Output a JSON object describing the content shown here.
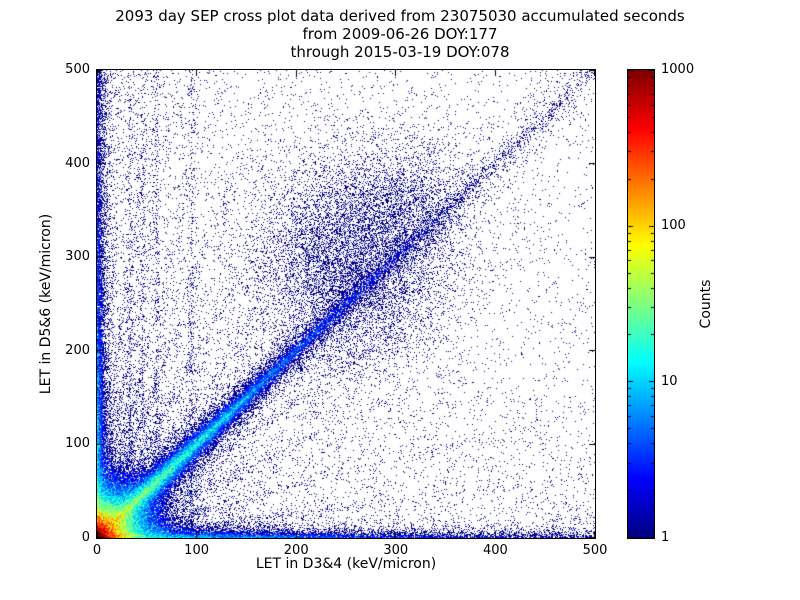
{
  "chart_data": {
    "type": "heatmap",
    "title_lines": [
      "2093 day SEP cross plot data derived from 23075030 accumulated seconds",
      "from 2009-06-26 DOY:177",
      "through 2015-03-19 DOY:078"
    ],
    "xlabel": "LET in D3&4 (keV/micron)",
    "ylabel": "LET in D5&6 (keV/micron)",
    "xlim": [
      0,
      500
    ],
    "ylim": [
      0,
      500
    ],
    "xticks": [
      0,
      100,
      200,
      300,
      400,
      500
    ],
    "yticks": [
      0,
      100,
      200,
      300,
      400,
      500
    ],
    "grid": false,
    "colorbar": {
      "label": "Counts",
      "scale": "log",
      "min": 1,
      "max": 1000,
      "ticks": [
        1,
        10,
        100,
        1000
      ],
      "colormap": "jet"
    },
    "render": {
      "seed": 1337,
      "noise_decades": 0.7
    },
    "features": [
      {
        "name": "origin-hotspot",
        "type": "exp-corner",
        "amp": 2500,
        "scale": 6.5,
        "amp2": 300,
        "rscale": 13
      },
      {
        "name": "x-axis-band",
        "type": "band",
        "axis": "x",
        "amp": 22,
        "thickness": 4,
        "falloff": 115,
        "floor": 0.05
      },
      {
        "name": "y-axis-band",
        "type": "band",
        "axis": "y",
        "amp": 18,
        "thickness": 4,
        "falloff": 135,
        "floor": 0.07
      },
      {
        "name": "identity-diagonal",
        "type": "diagonal",
        "amp": 65,
        "width": 4.5,
        "falloff": 70,
        "amp2": 1.2,
        "width2": 7,
        "falloff2": 240
      },
      {
        "name": "diagonal-halo",
        "type": "diagonal",
        "amp": 0.1,
        "width": 60,
        "falloff": 280,
        "amp2": 0,
        "width2": 1,
        "falloff2": 1
      },
      {
        "name": "upper-diagonal-cluster",
        "type": "blob",
        "cx": 252,
        "cy": 292,
        "sx": 48,
        "sy": 58,
        "amp": 0.5
      },
      {
        "name": "upper-diagonal-cluster-2",
        "type": "blob",
        "cx": 310,
        "cy": 350,
        "sx": 35,
        "sy": 40,
        "amp": 0.25
      },
      {
        "name": "steep-rays",
        "type": "rays",
        "slopes": [
          1.45,
          1.95,
          2.8,
          4.0,
          6.0,
          9.0
        ],
        "amp": 0.65,
        "width": 2.2,
        "falloff": 140
      },
      {
        "name": "shallow-rays",
        "type": "rays",
        "slopes": [
          0.13,
          0.28,
          0.5,
          0.72
        ],
        "amp": 0.5,
        "width": 2.2,
        "falloff": 170
      },
      {
        "name": "vertical-streaks",
        "type": "vlines",
        "xs": [
          33,
          46,
          60,
          95
        ],
        "amp": 0.4,
        "width": 1.8,
        "falloff": 420
      },
      {
        "name": "scattered-background",
        "type": "background",
        "base": 0.012,
        "left_amp": 0.07,
        "left_scale": 100,
        "bottom_amp": 0.05,
        "bottom_scale": 80
      }
    ]
  }
}
